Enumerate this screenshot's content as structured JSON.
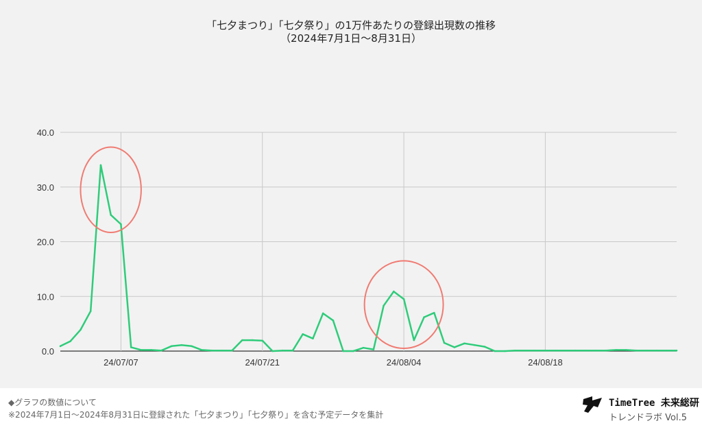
{
  "title": {
    "line1": "「七夕まつり」「七夕祭り」の1万件あたりの登録出現数の推移",
    "line2": "（2024年7月1日〜8月31日）"
  },
  "chart_data": {
    "type": "line",
    "x": [
      "24/07/01",
      "24/07/02",
      "24/07/03",
      "24/07/04",
      "24/07/05",
      "24/07/06",
      "24/07/07",
      "24/07/08",
      "24/07/09",
      "24/07/10",
      "24/07/11",
      "24/07/12",
      "24/07/13",
      "24/07/14",
      "24/07/15",
      "24/07/16",
      "24/07/17",
      "24/07/18",
      "24/07/19",
      "24/07/20",
      "24/07/21",
      "24/07/22",
      "24/07/23",
      "24/07/24",
      "24/07/25",
      "24/07/26",
      "24/07/27",
      "24/07/28",
      "24/07/29",
      "24/07/30",
      "24/07/31",
      "24/08/01",
      "24/08/02",
      "24/08/03",
      "24/08/04",
      "24/08/05",
      "24/08/06",
      "24/08/07",
      "24/08/08",
      "24/08/09",
      "24/08/10",
      "24/08/11",
      "24/08/12",
      "24/08/13",
      "24/08/14",
      "24/08/15",
      "24/08/16",
      "24/08/17",
      "24/08/18",
      "24/08/19",
      "24/08/20",
      "24/08/21",
      "24/08/22",
      "24/08/23",
      "24/08/24",
      "24/08/25",
      "24/08/26",
      "24/08/27",
      "24/08/28",
      "24/08/29",
      "24/08/30",
      "24/08/31"
    ],
    "series": [
      {
        "values": [
          0.9,
          1.8,
          3.9,
          7.3,
          34.0,
          24.9,
          23.2,
          0.7,
          0.2,
          0.2,
          0.1,
          0.9,
          1.1,
          0.9,
          0.2,
          0.1,
          0.1,
          0.1,
          2.0,
          2.0,
          1.9,
          0.0,
          0.1,
          0.1,
          3.1,
          2.3,
          6.9,
          5.6,
          0.0,
          0.0,
          0.6,
          0.3,
          8.3,
          10.9,
          9.5,
          2.0,
          6.2,
          7.0,
          1.5,
          0.7,
          1.4,
          1.1,
          0.8,
          0.0,
          0.0,
          0.1,
          0.1,
          0.1,
          0.1,
          0.1,
          0.1,
          0.1,
          0.1,
          0.1,
          0.1,
          0.2,
          0.2,
          0.1,
          0.1,
          0.1,
          0.1,
          0.1
        ],
        "color": "#2ecc7a"
      }
    ],
    "ylim": [
      0,
      40
    ],
    "yticks": [
      "0.0",
      "10.0",
      "20.0",
      "30.0",
      "40.0"
    ],
    "xticks": [
      "24/07/07",
      "24/07/21",
      "24/08/04",
      "24/08/18"
    ],
    "grid": true,
    "highlight_color": "#f07b72",
    "highlights": [
      {
        "x": "24/07/06",
        "y": 29.5,
        "rx_days": 3.0,
        "ry_value": 7.8
      },
      {
        "x": "24/08/04",
        "y": 8.5,
        "rx_days": 3.9,
        "ry_value": 8.0
      }
    ]
  },
  "footnote": {
    "line1": "◆グラフの数値について",
    "line2": "※2024年7月1日〜2024年8月31日に登録された「七夕まつり」「七夕祭り」を含む予定データを集計"
  },
  "brand": {
    "name": "TimeTree 未来総研",
    "sub": "トレンドラボ Vol.5"
  }
}
